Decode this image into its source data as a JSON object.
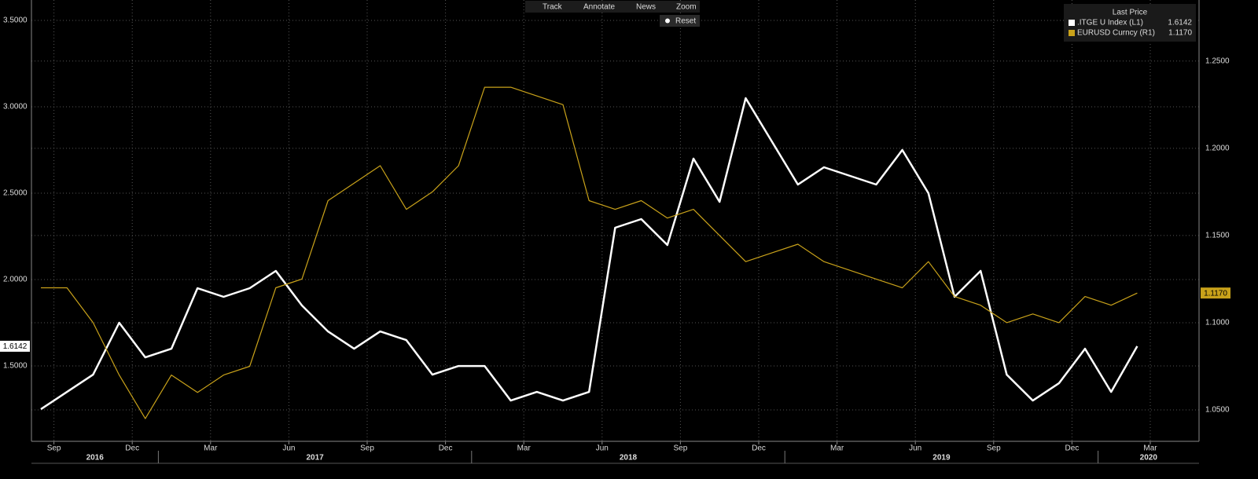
{
  "toolbar": {
    "buttons": [
      "Track",
      "Annotate",
      "News",
      "Zoom"
    ],
    "reset": "Reset"
  },
  "chart_data": {
    "type": "line",
    "legend_title": "Last Price",
    "x": [
      "2016-08",
      "2016-09",
      "2016-10",
      "2016-11",
      "2016-12",
      "2017-01",
      "2017-02",
      "2017-03",
      "2017-04",
      "2017-05",
      "2017-06",
      "2017-07",
      "2017-08",
      "2017-09",
      "2017-10",
      "2017-11",
      "2017-12",
      "2018-01",
      "2018-02",
      "2018-03",
      "2018-04",
      "2018-05",
      "2018-06",
      "2018-07",
      "2018-08",
      "2018-09",
      "2018-10",
      "2018-11",
      "2018-12",
      "2019-01",
      "2019-02",
      "2019-03",
      "2019-04",
      "2019-05",
      "2019-06",
      "2019-07",
      "2019-08",
      "2019-09",
      "2019-10",
      "2019-11",
      "2019-12",
      "2020-01",
      "2020-02"
    ],
    "series": [
      {
        "name": ".ITGE U Index  (L1)",
        "color": "#ffffff",
        "axis": "y",
        "last_label": "1.6142",
        "values": [
          1.25,
          1.35,
          1.45,
          1.75,
          1.55,
          1.6,
          1.95,
          1.9,
          1.95,
          2.05,
          1.85,
          1.7,
          1.6,
          1.7,
          1.65,
          1.45,
          1.5,
          1.5,
          1.3,
          1.35,
          1.3,
          1.35,
          2.3,
          2.35,
          2.2,
          2.7,
          2.45,
          3.05,
          2.8,
          2.55,
          2.65,
          2.6,
          2.55,
          2.75,
          2.5,
          1.9,
          2.05,
          1.45,
          1.3,
          1.4,
          1.6,
          1.35,
          1.6142
        ]
      },
      {
        "name": "EURUSD Curncy  (R1)",
        "color": "#c9a21a",
        "axis": "y2",
        "last_label": "1.1170",
        "values": [
          1.12,
          1.12,
          1.1,
          1.07,
          1.045,
          1.07,
          1.06,
          1.07,
          1.075,
          1.12,
          1.125,
          1.17,
          1.18,
          1.19,
          1.165,
          1.175,
          1.19,
          1.235,
          1.235,
          1.23,
          1.225,
          1.17,
          1.165,
          1.17,
          1.16,
          1.165,
          1.15,
          1.135,
          1.14,
          1.145,
          1.135,
          1.13,
          1.125,
          1.12,
          1.135,
          1.115,
          1.11,
          1.1,
          1.105,
          1.1,
          1.115,
          1.11,
          1.117
        ]
      }
    ],
    "ylim": [
      1.064,
      3.618
    ],
    "yticks": [
      {
        "value": 1.5,
        "label": "1.5000"
      },
      {
        "value": 2,
        "label": "2.0000"
      },
      {
        "value": 2.5,
        "label": "2.5000"
      },
      {
        "value": 3,
        "label": "3.0000"
      },
      {
        "value": 3.5,
        "label": "3.5000"
      }
    ],
    "y2lim": [
      1.032,
      1.285
    ],
    "y2ticks": [
      {
        "value": 1.05,
        "label": "1.0500"
      },
      {
        "value": 1.1,
        "label": "1.1000"
      },
      {
        "value": 1.15,
        "label": "1.1500"
      },
      {
        "value": 1.2,
        "label": "1.2000"
      },
      {
        "value": 1.25,
        "label": "1.2500"
      }
    ],
    "xticks": [
      {
        "value": "2016-09",
        "label": "Sep"
      },
      {
        "value": "2016-12",
        "label": "Dec"
      },
      {
        "value": "2017-03",
        "label": "Mar"
      },
      {
        "value": "2017-06",
        "label": "Jun"
      },
      {
        "value": "2017-09",
        "label": "Sep"
      },
      {
        "value": "2017-12",
        "label": "Dec"
      },
      {
        "value": "2018-03",
        "label": "Mar"
      },
      {
        "value": "2018-06",
        "label": "Jun"
      },
      {
        "value": "2018-09",
        "label": "Sep"
      },
      {
        "value": "2018-12",
        "label": "Dec"
      },
      {
        "value": "2019-03",
        "label": "Mar"
      },
      {
        "value": "2019-06",
        "label": "Jun"
      },
      {
        "value": "2019-09",
        "label": "Sep"
      },
      {
        "value": "2019-12",
        "label": "Dec"
      },
      {
        "value": "2020-03",
        "label": "Mar"
      }
    ],
    "years": [
      2016,
      2017,
      2018,
      2019,
      2020
    ],
    "grid": true
  }
}
